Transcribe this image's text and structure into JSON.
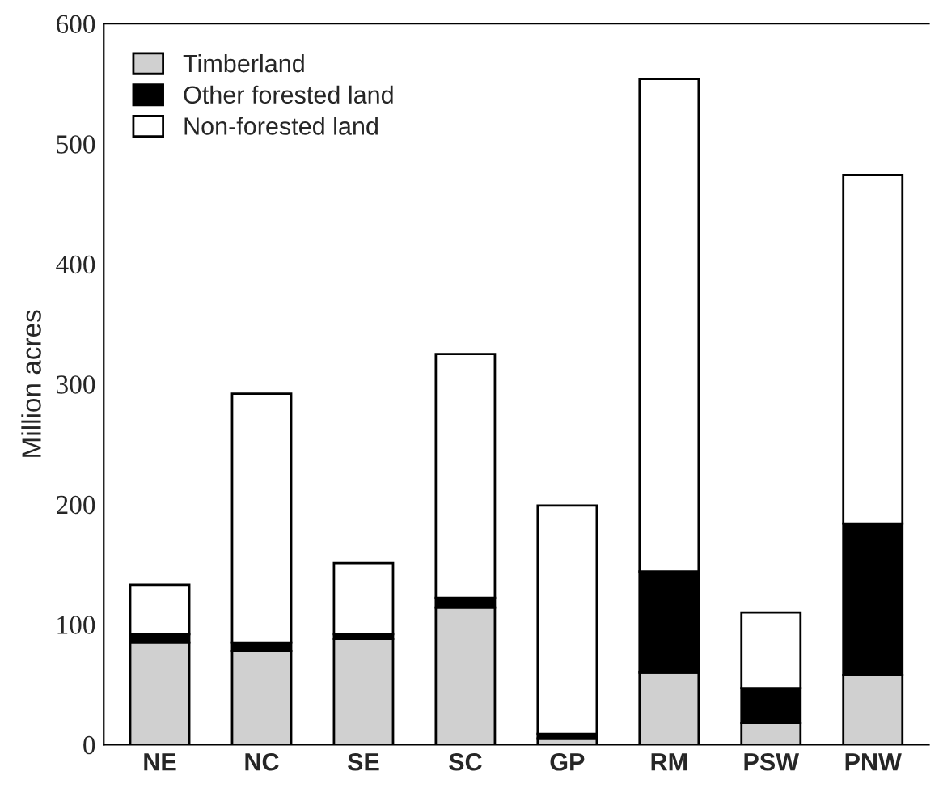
{
  "chart_data": {
    "type": "bar",
    "stacked": true,
    "ylabel": "Million acres",
    "categories": [
      "NE",
      "NC",
      "SE",
      "SC",
      "GP",
      "RM",
      "PSW",
      "PNW"
    ],
    "series": [
      {
        "name": "Timberland",
        "color": "#d0d0d0",
        "values": [
          85,
          78,
          88,
          114,
          5,
          60,
          18,
          58
        ]
      },
      {
        "name": "Other forested land",
        "color": "#000000",
        "values": [
          7,
          7,
          4,
          8,
          4,
          84,
          29,
          126
        ]
      },
      {
        "name": "Non-forested land",
        "color": "#ffffff",
        "values": [
          41,
          207,
          59,
          203,
          190,
          410,
          63,
          290
        ]
      }
    ],
    "ylim": [
      0,
      600
    ],
    "yticks": [
      0,
      100,
      200,
      300,
      400,
      500,
      600
    ],
    "grid": false,
    "legend": "top left"
  }
}
